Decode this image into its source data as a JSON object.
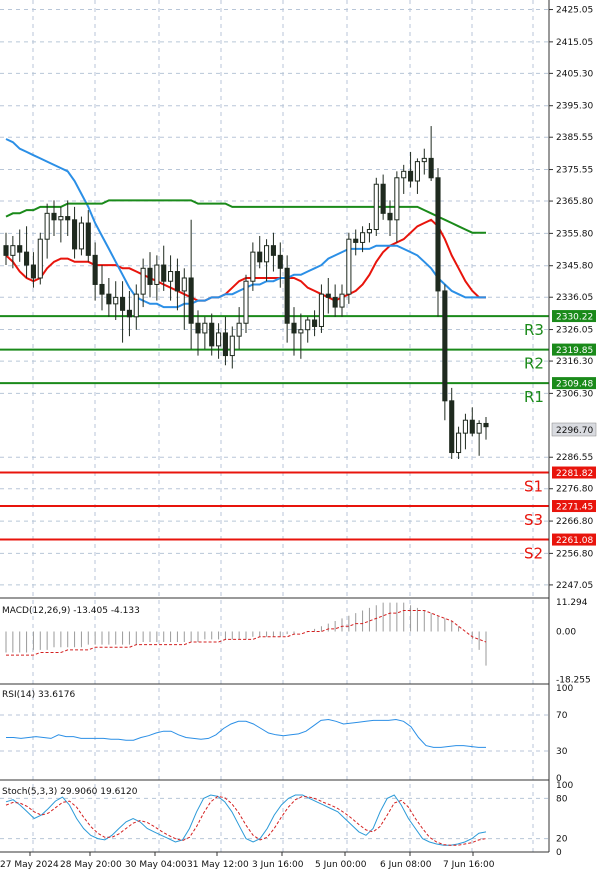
{
  "colors": {
    "background": "#ffffff",
    "grid": "#b8c6d8",
    "candle": "#1f2a1f",
    "candle_up_fill": "#ffffff",
    "candle_down_fill": "#1f2a1f",
    "ma_fast": "#e8140c",
    "ma_medium": "#2b8fe6",
    "ma_slow": "#1a8a1a",
    "resistance": "#1a8a1a",
    "support": "#e8140c",
    "macd_hist": "#9a9a9a",
    "macd_signal": "#d42020",
    "rsi_line": "#2b8fe6",
    "stoch_main": "#2b9ad8",
    "stoch_signal": "#d42020",
    "price_tag": "#d9dbe0",
    "text": "#111111"
  },
  "price_axis": {
    "ticks": [
      "2425.05",
      "2415.05",
      "2405.30",
      "2395.30",
      "2385.55",
      "2375.55",
      "2365.80",
      "2355.80",
      "2345.80",
      "2336.05",
      "2326.05",
      "2316.30",
      "2306.30",
      "2286.55",
      "2276.80",
      "2266.80",
      "2256.80",
      "2247.05"
    ],
    "current_price": "2296.70"
  },
  "levels": [
    {
      "name": "R3",
      "value": "2330.22",
      "kind": "resistance"
    },
    {
      "name": "R2",
      "value": "2319.85",
      "kind": "resistance"
    },
    {
      "name": "R1",
      "value": "2309.48",
      "kind": "resistance"
    },
    {
      "name": "S1",
      "value": "2281.82",
      "kind": "support"
    },
    {
      "name": "S3",
      "value": "2271.45",
      "kind": "support"
    },
    {
      "name": "S2",
      "value": "2261.08",
      "kind": "support"
    }
  ],
  "time_axis": [
    "27 May 2024",
    "28 May 20:00",
    "30 May 04:00",
    "31 May 12:00",
    "3 Jun 16:00",
    "5 Jun 00:00",
    "6 Jun 08:00",
    "7 Jun 16:00"
  ],
  "chart_data": {
    "type": "candlestick",
    "ylim": [
      2243,
      2428
    ],
    "candles": [
      [
        2352,
        2356,
        2346,
        2349
      ],
      [
        2349,
        2355,
        2345,
        2352
      ],
      [
        2352,
        2357,
        2347,
        2350
      ],
      [
        2350,
        2358,
        2342,
        2346
      ],
      [
        2346,
        2350,
        2339,
        2342
      ],
      [
        2342,
        2356,
        2340,
        2354
      ],
      [
        2354,
        2365,
        2348,
        2362
      ],
      [
        2362,
        2366,
        2355,
        2360
      ],
      [
        2360,
        2364,
        2353,
        2361
      ],
      [
        2361,
        2366,
        2355,
        2360
      ],
      [
        2360,
        2364,
        2348,
        2351
      ],
      [
        2351,
        2361,
        2349,
        2359
      ],
      [
        2359,
        2363,
        2347,
        2349
      ],
      [
        2349,
        2353,
        2335,
        2340
      ],
      [
        2340,
        2346,
        2332,
        2337
      ],
      [
        2337,
        2342,
        2330,
        2334
      ],
      [
        2334,
        2341,
        2329,
        2336
      ],
      [
        2336,
        2341,
        2322,
        2332
      ],
      [
        2332,
        2338,
        2324,
        2330
      ],
      [
        2330,
        2340,
        2326,
        2337
      ],
      [
        2337,
        2348,
        2333,
        2345
      ],
      [
        2345,
        2350,
        2336,
        2340
      ],
      [
        2340,
        2349,
        2335,
        2346
      ],
      [
        2346,
        2352,
        2338,
        2341
      ],
      [
        2341,
        2349,
        2335,
        2344
      ],
      [
        2344,
        2348,
        2332,
        2338
      ],
      [
        2338,
        2345,
        2326,
        2342
      ],
      [
        2342,
        2360,
        2320,
        2328
      ],
      [
        2328,
        2332,
        2318,
        2325
      ],
      [
        2325,
        2330,
        2320,
        2328
      ],
      [
        2328,
        2331,
        2318,
        2321
      ],
      [
        2321,
        2328,
        2317,
        2325
      ],
      [
        2325,
        2330,
        2315,
        2318
      ],
      [
        2318,
        2327,
        2314,
        2324
      ],
      [
        2324,
        2333,
        2320,
        2328
      ],
      [
        2328,
        2343,
        2325,
        2341
      ],
      [
        2341,
        2353,
        2338,
        2350
      ],
      [
        2350,
        2355,
        2345,
        2347
      ],
      [
        2347,
        2354,
        2341,
        2352
      ],
      [
        2352,
        2356,
        2344,
        2349
      ],
      [
        2349,
        2353,
        2339,
        2345
      ],
      [
        2345,
        2349,
        2322,
        2328
      ],
      [
        2328,
        2333,
        2318,
        2325
      ],
      [
        2325,
        2331,
        2317,
        2326
      ],
      [
        2326,
        2330,
        2322,
        2329
      ],
      [
        2329,
        2332,
        2324,
        2327
      ],
      [
        2327,
        2340,
        2325,
        2337
      ],
      [
        2337,
        2342,
        2331,
        2336
      ],
      [
        2336,
        2340,
        2330,
        2333
      ],
      [
        2333,
        2340,
        2330,
        2337
      ],
      [
        2337,
        2356,
        2334,
        2354
      ],
      [
        2354,
        2357,
        2349,
        2353
      ],
      [
        2353,
        2358,
        2350,
        2356
      ],
      [
        2356,
        2359,
        2353,
        2357
      ],
      [
        2357,
        2373,
        2355,
        2371
      ],
      [
        2371,
        2374,
        2360,
        2362
      ],
      [
        2362,
        2366,
        2355,
        2360
      ],
      [
        2360,
        2375,
        2353,
        2373
      ],
      [
        2373,
        2377,
        2368,
        2375
      ],
      [
        2375,
        2381,
        2370,
        2372
      ],
      [
        2372,
        2379,
        2368,
        2378
      ],
      [
        2378,
        2382,
        2374,
        2379
      ],
      [
        2379,
        2389,
        2372,
        2373
      ],
      [
        2373,
        2376,
        2330,
        2338
      ],
      [
        2338,
        2340,
        2298,
        2304
      ],
      [
        2304,
        2308,
        2286,
        2288
      ],
      [
        2288,
        2296,
        2286,
        2294
      ],
      [
        2294,
        2300,
        2289,
        2298
      ],
      [
        2298,
        2302,
        2293,
        2294
      ],
      [
        2294,
        2298,
        2287,
        2297
      ],
      [
        2297,
        2299,
        2292,
        2296
      ]
    ],
    "series": [
      {
        "name": "MA fast",
        "color": "#e8140c",
        "values": [
          2349,
          2347,
          2344,
          2342,
          2341,
          2342,
          2345,
          2347,
          2348,
          2348,
          2347,
          2347,
          2347,
          2346,
          2346,
          2346,
          2346,
          2345,
          2345,
          2344,
          2343,
          2342,
          2341,
          2340,
          2339,
          2338,
          2337,
          2336,
          2335,
          2335,
          2336,
          2336,
          2337,
          2339,
          2341,
          2342,
          2342,
          2342,
          2342,
          2342,
          2342,
          2342,
          2342,
          2341,
          2339,
          2338,
          2337,
          2336,
          2335,
          2336,
          2337,
          2338,
          2340,
          2343,
          2347,
          2350,
          2352,
          2353,
          2354,
          2356,
          2358,
          2359,
          2360,
          2358,
          2354,
          2349,
          2345,
          2341,
          2338,
          2336,
          2336
        ]
      },
      {
        "name": "MA medium",
        "color": "#2b8fe6",
        "values": [
          2385,
          2384,
          2382,
          2381,
          2380,
          2379,
          2378,
          2377,
          2376,
          2375,
          2372,
          2368,
          2364,
          2359,
          2355,
          2351,
          2347,
          2343,
          2339,
          2336,
          2335,
          2334,
          2334,
          2333,
          2333,
          2333,
          2334,
          2334,
          2335,
          2335,
          2336,
          2336,
          2337,
          2337,
          2338,
          2339,
          2340,
          2340,
          2341,
          2341,
          2342,
          2342,
          2343,
          2343,
          2344,
          2345,
          2346,
          2348,
          2349,
          2350,
          2351,
          2351,
          2351,
          2351,
          2352,
          2352,
          2352,
          2352,
          2351,
          2350,
          2349,
          2347,
          2345,
          2342,
          2340,
          2338,
          2337,
          2336,
          2336,
          2336,
          2336
        ]
      },
      {
        "name": "MA slow",
        "color": "#1a8a1a",
        "values": [
          2361,
          2362,
          2362,
          2363,
          2363,
          2364,
          2364,
          2364,
          2364,
          2365,
          2365,
          2365,
          2365,
          2365,
          2365,
          2366,
          2366,
          2366,
          2366,
          2366,
          2366,
          2366,
          2366,
          2366,
          2366,
          2366,
          2366,
          2366,
          2365,
          2365,
          2365,
          2365,
          2365,
          2364,
          2364,
          2364,
          2364,
          2364,
          2364,
          2364,
          2364,
          2364,
          2364,
          2364,
          2364,
          2364,
          2364,
          2364,
          2364,
          2364,
          2364,
          2364,
          2364,
          2364,
          2364,
          2364,
          2364,
          2364,
          2364,
          2364,
          2364,
          2363,
          2362,
          2361,
          2360,
          2359,
          2358,
          2357,
          2356,
          2356,
          2356
        ]
      }
    ]
  },
  "macd": {
    "label": "MACD(12,26,9) -13.405 -4.133",
    "ticks": [
      "11.294",
      "0.00",
      "-18.255"
    ],
    "ylim": [
      -20,
      12
    ],
    "histogram": [
      -8,
      -8,
      -8,
      -8,
      -7,
      -7,
      -7,
      -6,
      -6,
      -6,
      -6,
      -6,
      -5,
      -5,
      -5,
      -5,
      -5,
      -5,
      -5,
      -5,
      -4,
      -4,
      -4,
      -4,
      -4,
      -4,
      -4,
      -4,
      -4,
      -3,
      -3,
      -3,
      -3,
      -3,
      -3,
      -3,
      -2,
      -2,
      -2,
      -2,
      -2,
      -1,
      -1,
      0,
      0,
      1,
      2,
      3,
      4,
      5,
      6,
      7,
      8,
      9,
      10,
      11,
      11,
      11,
      11,
      10,
      9,
      8,
      7,
      6,
      5,
      4,
      2,
      0,
      -3,
      -7,
      -13
    ],
    "signal": [
      -9,
      -9,
      -9,
      -9,
      -9,
      -8,
      -8,
      -8,
      -8,
      -7,
      -7,
      -7,
      -7,
      -6,
      -6,
      -6,
      -6,
      -6,
      -6,
      -5,
      -5,
      -5,
      -5,
      -5,
      -5,
      -5,
      -5,
      -4,
      -4,
      -4,
      -4,
      -4,
      -3,
      -3,
      -3,
      -3,
      -3,
      -2,
      -2,
      -2,
      -2,
      -2,
      -1,
      -1,
      0,
      0,
      0,
      1,
      1,
      2,
      2,
      3,
      3,
      4,
      5,
      6,
      7,
      7,
      8,
      8,
      8,
      8,
      7,
      6,
      5,
      4,
      2,
      0,
      -2,
      -3,
      -4
    ]
  },
  "rsi": {
    "label": "RSI(14) 33.6176",
    "ticks": [
      "100",
      "70",
      "30",
      "0"
    ],
    "values": [
      45,
      45,
      44,
      45,
      46,
      45,
      44,
      48,
      46,
      46,
      44,
      44,
      44,
      44,
      43,
      43,
      42,
      42,
      45,
      47,
      50,
      52,
      52,
      48,
      45,
      44,
      43,
      44,
      48,
      55,
      60,
      63,
      63,
      60,
      55,
      50,
      48,
      47,
      48,
      49,
      52,
      58,
      64,
      65,
      63,
      60,
      61,
      62,
      63,
      64,
      64,
      64,
      65,
      63,
      57,
      45,
      36,
      34,
      34,
      35,
      36,
      36,
      35,
      34,
      34
    ]
  },
  "stoch": {
    "label": "Stoch(5,3,3) 29.9060 19.6120",
    "ticks": [
      "100",
      "80",
      "20",
      "0"
    ],
    "main": [
      75,
      78,
      70,
      60,
      50,
      55,
      65,
      76,
      82,
      70,
      50,
      35,
      25,
      20,
      18,
      25,
      35,
      45,
      50,
      45,
      35,
      30,
      25,
      20,
      15,
      18,
      35,
      60,
      80,
      85,
      83,
      75,
      60,
      40,
      20,
      15,
      20,
      35,
      55,
      70,
      80,
      85,
      85,
      80,
      75,
      70,
      65,
      60,
      50,
      40,
      30,
      25,
      35,
      60,
      80,
      85,
      70,
      50,
      35,
      20,
      15,
      12,
      10,
      10,
      12,
      15,
      20,
      28,
      30
    ],
    "signal": [
      70,
      74,
      73,
      68,
      60,
      55,
      58,
      66,
      74,
      76,
      67,
      52,
      38,
      28,
      22,
      22,
      27,
      35,
      43,
      47,
      44,
      38,
      31,
      25,
      20,
      17,
      22,
      38,
      58,
      75,
      83,
      81,
      72,
      58,
      40,
      25,
      18,
      22,
      35,
      52,
      67,
      78,
      83,
      82,
      79,
      74,
      70,
      65,
      58,
      50,
      41,
      33,
      30,
      38,
      55,
      73,
      77,
      67,
      50,
      35,
      22,
      15,
      11,
      10,
      10,
      12,
      14,
      18,
      20
    ]
  }
}
